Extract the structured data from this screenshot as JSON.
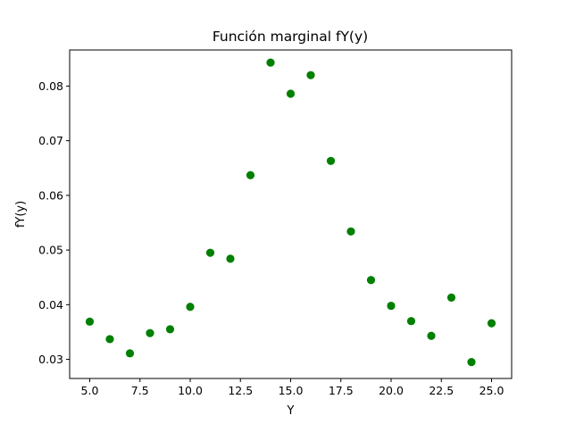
{
  "chart_data": {
    "type": "scatter",
    "title": "Función marginal fY(y)",
    "xlabel": "Y",
    "ylabel": "fY(y)",
    "xlim": [
      4.0,
      26.0
    ],
    "ylim": [
      0.0265,
      0.0866
    ],
    "xticks": [
      5.0,
      7.5,
      10.0,
      12.5,
      15.0,
      17.5,
      20.0,
      22.5,
      25.0
    ],
    "xtick_labels": [
      "5.0",
      "7.5",
      "10.0",
      "12.5",
      "15.0",
      "17.5",
      "20.0",
      "22.5",
      "25.0"
    ],
    "yticks": [
      0.03,
      0.04,
      0.05,
      0.06,
      0.07,
      0.08
    ],
    "ytick_labels": [
      "0.03",
      "0.04",
      "0.05",
      "0.06",
      "0.07",
      "0.08"
    ],
    "grid": false,
    "marker_color": "#008000",
    "x": [
      5,
      6,
      7,
      8,
      9,
      10,
      11,
      12,
      13,
      14,
      15,
      16,
      17,
      18,
      19,
      20,
      21,
      22,
      23,
      24,
      25
    ],
    "y": [
      0.0369,
      0.0337,
      0.0311,
      0.0348,
      0.0355,
      0.0396,
      0.0495,
      0.0484,
      0.0637,
      0.0843,
      0.0786,
      0.082,
      0.0663,
      0.0534,
      0.0445,
      0.0398,
      0.037,
      0.0343,
      0.0413,
      0.0295,
      0.0366
    ]
  }
}
